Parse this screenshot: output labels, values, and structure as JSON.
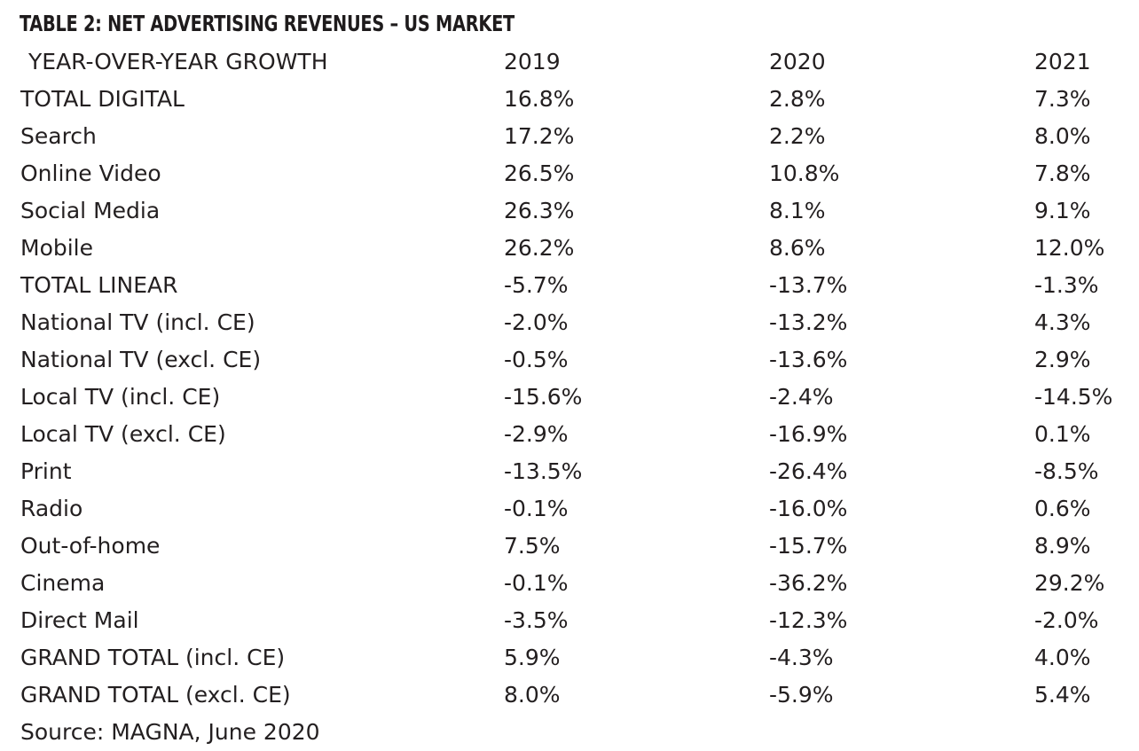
{
  "title": "TABLE 2: NET ADVERTISING REVENUES – US MARKET",
  "header": [
    "YEAR-OVER-YEAR GROWTH",
    "2019",
    "2020",
    "2021"
  ],
  "rows": [
    [
      "TOTAL DIGITAL",
      "16.8%",
      "2.8%",
      "7.3%"
    ],
    [
      "Search",
      "17.2%",
      "2.2%",
      "8.0%"
    ],
    [
      "Online Video",
      "26.5%",
      "10.8%",
      "7.8%"
    ],
    [
      "Social Media",
      "26.3%",
      "8.1%",
      "9.1%"
    ],
    [
      "Mobile",
      "26.2%",
      "8.6%",
      "12.0%"
    ],
    [
      "TOTAL LINEAR",
      "-5.7%",
      "-13.7%",
      "-1.3%"
    ],
    [
      "National TV (incl. CE)",
      "-2.0%",
      "-13.2%",
      "4.3%"
    ],
    [
      "National TV (excl. CE)",
      "-0.5%",
      "-13.6%",
      "2.9%"
    ],
    [
      "Local TV (incl. CE)",
      "-15.6%",
      "-2.4%",
      "-14.5%"
    ],
    [
      "Local TV (excl. CE)",
      "-2.9%",
      "-16.9%",
      "0.1%"
    ],
    [
      "Print",
      "-13.5%",
      "-26.4%",
      "-8.5%"
    ],
    [
      "Radio",
      "-0.1%",
      "-16.0%",
      "0.6%"
    ],
    [
      "Out-of-home",
      "7.5%",
      "-15.7%",
      "8.9%"
    ],
    [
      "Cinema",
      "-0.1%",
      "-36.2%",
      "29.2%"
    ],
    [
      "Direct Mail",
      "-3.5%",
      "-12.3%",
      "-2.0%"
    ],
    [
      "GRAND TOTAL (incl. CE)",
      "5.9%",
      "-4.3%",
      "4.0%"
    ],
    [
      "GRAND TOTAL (excl. CE)",
      "8.0%",
      "-5.9%",
      "5.4%"
    ]
  ],
  "source": "Source: MAGNA, June 2020"
}
